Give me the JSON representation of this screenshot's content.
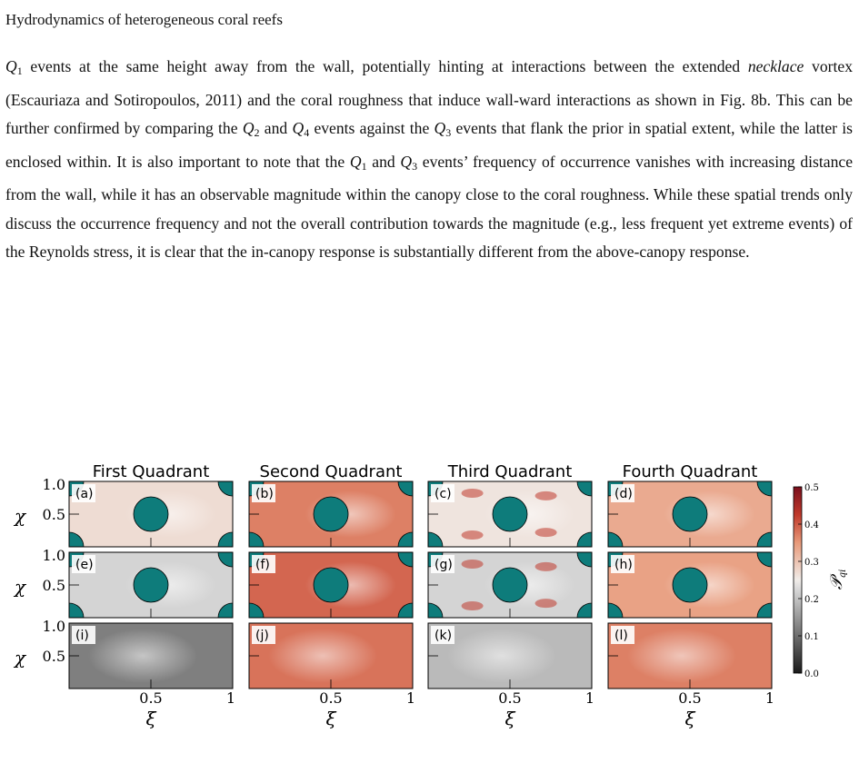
{
  "header": {
    "running_head": "Hydrodynamics of heterogeneous coral reefs"
  },
  "paragraph": {
    "q1": "Q",
    "t1": " events at the same height away from the wall, potentially hinting at interactions between the extended ",
    "necklace": "necklace",
    "t2": " vortex (Escauriaza and Sotiropoulos, 2011) and the coral roughness that induce wall-ward interactions as shown in Fig. 8b. This can be further confirmed by comparing the ",
    "t3": " and ",
    "t4": " events against the ",
    "t5": " events that flank the prior in spatial extent, while the latter is enclosed within. It is also important to note that the ",
    "t6": " and ",
    "t7": " events’ frequency of occurrence vanishes with increasing distance from the wall, while it has an observable magnitude within the canopy close to the coral roughness. While these spatial trends only discuss the occurrence frequency and not the overall contribution towards the magnitude (e.g., less frequent yet extreme events) of the Reynolds stress, it is clear that the in-canopy response is substantially different from the above-canopy response.",
    "sub1": "1",
    "sub2": "2",
    "sub3": "3",
    "sub4": "4"
  },
  "figure": {
    "column_titles": [
      "First Quadrant",
      "Second Quadrant",
      "Third Quadrant",
      "Fourth Quadrant"
    ],
    "panel_labels": [
      "(a)",
      "(b)",
      "(c)",
      "(d)",
      "(e)",
      "(f)",
      "(g)",
      "(h)",
      "(i)",
      "(j)",
      "(k)",
      "(l)"
    ],
    "ylabel": "χ",
    "xlabel": "ξ",
    "ytick_labels": [
      "1.0",
      "0.5"
    ],
    "xtick_labels": [
      "0.5",
      "1"
    ],
    "colorbar_label": "𝒫",
    "colorbar_label_sub": "qi",
    "colorbar_ticks": [
      "0.5",
      "0.4",
      "0.3",
      "0.2",
      "0.1",
      "0.0"
    ],
    "colors": {
      "coral": "#0e7c7b",
      "low": "#1a1a1a",
      "mid": "#f0f0f0",
      "high": "#7a0f1d"
    },
    "panel_mean_values": [
      0.27,
      0.37,
      0.26,
      0.33,
      0.22,
      0.39,
      0.22,
      0.34,
      0.12,
      0.38,
      0.19,
      0.37
    ]
  }
}
